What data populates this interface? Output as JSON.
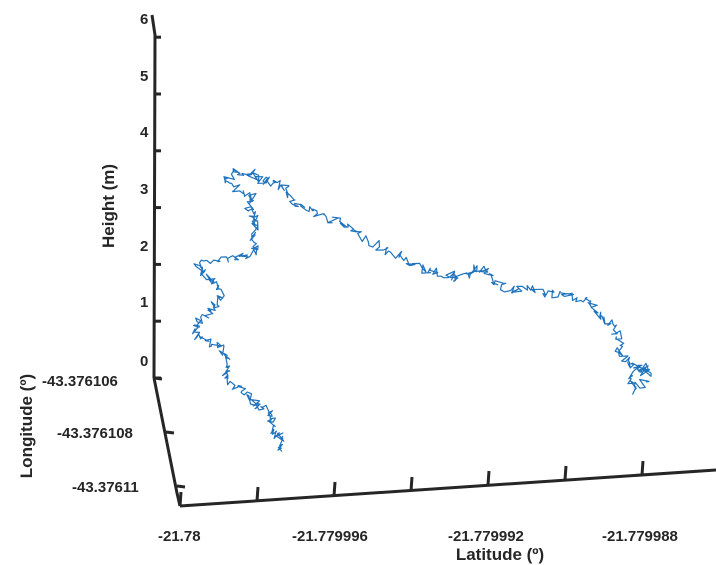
{
  "chart_data": {
    "type": "line",
    "projection": "3d",
    "title": "",
    "xlabel": "Latitude (º)",
    "ylabel": "Longitude (º)",
    "zlabel": "Height (m)",
    "x_ticks": [
      "-21.78",
      "-21.779996",
      "-21.779992",
      "-21.779988"
    ],
    "y_ticks": [
      "-43.376106",
      "-43.376108",
      "-43.37611"
    ],
    "z_ticks": [
      "0",
      "1",
      "2",
      "3",
      "4",
      "5",
      "6"
    ],
    "xlim": [
      -21.78,
      -21.779987
    ],
    "ylim": [
      -43.376106,
      -43.37611
    ],
    "zlim": [
      0,
      6
    ],
    "grid": false,
    "series": [
      {
        "color": "#1f73bd",
        "points": [
          [
            -21.779993,
            -43.376106,
            3.35
          ],
          [
            -21.779993,
            -43.376106,
            3.1
          ],
          [
            -21.779992,
            -43.376106,
            2.95
          ],
          [
            -21.779991,
            -43.376106,
            2.7
          ],
          [
            -21.779991,
            -43.376106,
            2.5
          ],
          [
            -21.77999,
            -43.376106,
            2.3
          ],
          [
            -21.779989,
            -43.376106,
            1.9
          ],
          [
            -21.779989,
            -43.376106,
            1.65
          ],
          [
            -21.779988,
            -43.376106,
            1.05
          ],
          [
            -21.779988,
            -43.376106,
            0.8
          ],
          [
            -21.779988,
            -43.376106,
            0.62
          ],
          [
            -21.7799878,
            -43.376106,
            0.42
          ],
          [
            -21.7799875,
            -43.376106,
            0.4
          ],
          [
            -21.7799878,
            -43.376106,
            0.55
          ],
          [
            -21.779988,
            -43.376106,
            0.45
          ],
          [
            -21.7799998,
            -43.376106,
            3.3
          ],
          [
            -21.7799995,
            -43.376106,
            3.2
          ],
          [
            -21.7799996,
            -43.376106,
            2.95
          ],
          [
            -21.7799994,
            -43.376106,
            2.8
          ],
          [
            -21.7799996,
            -43.376106,
            2.55
          ],
          [
            -21.7799997,
            -43.376106,
            2.3
          ],
          [
            -21.7799995,
            -43.376106,
            2.1
          ],
          [
            -21.7800002,
            -43.376106,
            1.65
          ],
          [
            -21.7800001,
            -43.376106,
            1.45
          ],
          [
            -21.7799998,
            -43.376106,
            1.25
          ],
          [
            -21.7800002,
            -43.376106,
            1.0
          ],
          [
            -21.7800004,
            -43.376106,
            0.6
          ],
          [
            -21.7800002,
            -43.376106,
            0.4
          ],
          [
            -21.7799998,
            -43.376107,
            0.2
          ],
          [
            -21.7799997,
            -43.376107,
            0.1
          ],
          [
            -21.7799996,
            -43.376108,
            0.05
          ],
          [
            -21.7799993,
            -43.376108,
            0.05
          ]
        ]
      }
    ]
  }
}
